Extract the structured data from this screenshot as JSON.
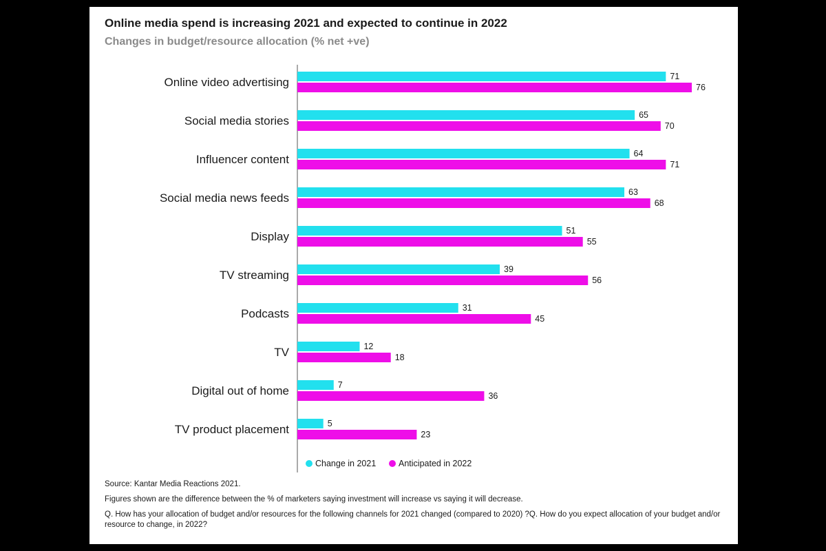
{
  "chart_data": {
    "type": "bar",
    "orientation": "horizontal",
    "title": "Online media spend is increasing 2021 and expected to continue in 2022",
    "subtitle": "Changes in budget/resource allocation (% net +ve)",
    "categories": [
      "Online video advertising",
      "Social media stories",
      "Influencer content",
      "Social media news feeds",
      "Display",
      "TV streaming",
      "Podcasts",
      "TV",
      "Digital out of home",
      "TV product placement"
    ],
    "series": [
      {
        "name": "Change in 2021",
        "color": "#22e0ee",
        "values": [
          71,
          65,
          64,
          63,
          51,
          39,
          31,
          12,
          7,
          5
        ]
      },
      {
        "name": "Anticipated in 2022",
        "color": "#ee0ee8",
        "values": [
          76,
          70,
          71,
          68,
          55,
          56,
          45,
          18,
          36,
          23
        ]
      }
    ],
    "xlim": [
      0,
      100
    ],
    "xlabel": "",
    "ylabel": "",
    "grid": false,
    "legend_position": "bottom"
  },
  "notes": {
    "source": "Source: Kantar Media Reactions 2021.",
    "definition": "Figures shown are the difference between the % of marketers saying investment will increase vs saying it will decrease.",
    "question": "Q. How has your allocation of budget and/or resources for the following channels for 2021 changed  (compared to 2020) ?Q. How do you expect allocation of your budget and/or resource to change, in 2022?"
  }
}
